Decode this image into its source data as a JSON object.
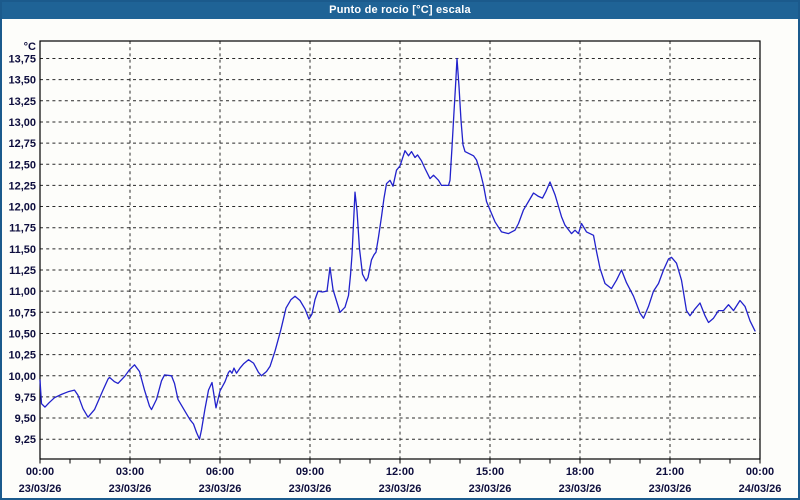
{
  "window": {
    "title": "Punto de rocío [°C] escala"
  },
  "colors": {
    "titlebar": "#1f6396",
    "border": "#1b5a8c",
    "background": "#fdfdfa",
    "grid": "#2a2a2a",
    "axis_frame": "#000000",
    "text": "#0d0d3d",
    "title_text": "#ffffff",
    "line": "#2222cc"
  },
  "chart_data": {
    "type": "line",
    "title": "Punto de rocío [°C] escala",
    "y_unit_label": "°C",
    "ylabel": "°C",
    "xlabel": "",
    "ylim": [
      9.02,
      13.96
    ],
    "xlim_minutes": [
      0,
      1440
    ],
    "grid": "dashed",
    "legend_position": "none",
    "y_ticks": [
      13.75,
      13.5,
      13.25,
      13.0,
      12.75,
      12.5,
      12.25,
      12.0,
      11.75,
      11.5,
      11.25,
      11.0,
      10.75,
      10.5,
      10.25,
      10.0,
      9.75,
      9.5,
      9.25
    ],
    "y_tick_labels": [
      "13,75",
      "13,50",
      "13,25",
      "13,00",
      "12,75",
      "12,50",
      "12,25",
      "12,00",
      "11,75",
      "11,50",
      "11,25",
      "11,00",
      "10,75",
      "10,50",
      "10,25",
      "10,00",
      "9,75",
      "9,50",
      "9,25"
    ],
    "x_ticks": [
      {
        "minutes": 0,
        "time": "00:00",
        "date": "23/03/26"
      },
      {
        "minutes": 180,
        "time": "03:00",
        "date": "23/03/26"
      },
      {
        "minutes": 360,
        "time": "06:00",
        "date": "23/03/26"
      },
      {
        "minutes": 540,
        "time": "09:00",
        "date": "23/03/26"
      },
      {
        "minutes": 720,
        "time": "12:00",
        "date": "23/03/26"
      },
      {
        "minutes": 900,
        "time": "15:00",
        "date": "23/03/26"
      },
      {
        "minutes": 1080,
        "time": "18:00",
        "date": "23/03/26"
      },
      {
        "minutes": 1260,
        "time": "21:00",
        "date": "23/03/26"
      },
      {
        "minutes": 1440,
        "time": "00:00",
        "date": "24/03/26"
      }
    ],
    "minor_x_tick_every_minutes": 60,
    "series": [
      {
        "name": "Punto de rocío [°C]",
        "color": "#2222cc",
        "points_minutes_value": [
          [
            0,
            9.95
          ],
          [
            3,
            9.67
          ],
          [
            10,
            9.63
          ],
          [
            18,
            9.68
          ],
          [
            29,
            9.74
          ],
          [
            43,
            9.78
          ],
          [
            56,
            9.81
          ],
          [
            69,
            9.83
          ],
          [
            76,
            9.77
          ],
          [
            86,
            9.61
          ],
          [
            96,
            9.51
          ],
          [
            109,
            9.6
          ],
          [
            126,
            9.83
          ],
          [
            136,
            9.96
          ],
          [
            139,
            9.98
          ],
          [
            149,
            9.93
          ],
          [
            156,
            9.91
          ],
          [
            169,
            9.99
          ],
          [
            179,
            10.07
          ],
          [
            189,
            10.13
          ],
          [
            199,
            10.05
          ],
          [
            209,
            9.83
          ],
          [
            219,
            9.64
          ],
          [
            223,
            9.6
          ],
          [
            233,
            9.72
          ],
          [
            243,
            9.94
          ],
          [
            249,
            10.01
          ],
          [
            263,
            10.0
          ],
          [
            269,
            9.91
          ],
          [
            276,
            9.72
          ],
          [
            293,
            9.55
          ],
          [
            300,
            9.48
          ],
          [
            307,
            9.43
          ],
          [
            313,
            9.33
          ],
          [
            319,
            9.25
          ],
          [
            323,
            9.36
          ],
          [
            330,
            9.61
          ],
          [
            337,
            9.83
          ],
          [
            344,
            9.92
          ],
          [
            352,
            9.62
          ],
          [
            360,
            9.82
          ],
          [
            370,
            9.93
          ],
          [
            377,
            10.04
          ],
          [
            380,
            10.06
          ],
          [
            384,
            10.03
          ],
          [
            388,
            10.09
          ],
          [
            393,
            10.03
          ],
          [
            400,
            10.09
          ],
          [
            407,
            10.14
          ],
          [
            417,
            10.19
          ],
          [
            427,
            10.15
          ],
          [
            437,
            10.04
          ],
          [
            443,
            10.0
          ],
          [
            453,
            10.05
          ],
          [
            460,
            10.11
          ],
          [
            470,
            10.29
          ],
          [
            482,
            10.55
          ],
          [
            492,
            10.8
          ],
          [
            502,
            10.9
          ],
          [
            510,
            10.94
          ],
          [
            520,
            10.89
          ],
          [
            530,
            10.79
          ],
          [
            538,
            10.67
          ],
          [
            544,
            10.73
          ],
          [
            550,
            10.9
          ],
          [
            556,
            11.0
          ],
          [
            565,
            10.99
          ],
          [
            574,
            11.0
          ],
          [
            580,
            11.28
          ],
          [
            586,
            11.02
          ],
          [
            600,
            10.75
          ],
          [
            610,
            10.81
          ],
          [
            617,
            10.95
          ],
          [
            621,
            11.19
          ],
          [
            624,
            11.43
          ],
          [
            630,
            12.17
          ],
          [
            634,
            11.95
          ],
          [
            639,
            11.5
          ],
          [
            645,
            11.2
          ],
          [
            652,
            11.12
          ],
          [
            656,
            11.16
          ],
          [
            663,
            11.37
          ],
          [
            668,
            11.43
          ],
          [
            672,
            11.46
          ],
          [
            677,
            11.64
          ],
          [
            683,
            11.88
          ],
          [
            688,
            12.1
          ],
          [
            693,
            12.27
          ],
          [
            700,
            12.31
          ],
          [
            706,
            12.24
          ],
          [
            713,
            12.43
          ],
          [
            720,
            12.48
          ],
          [
            730,
            12.66
          ],
          [
            737,
            12.6
          ],
          [
            743,
            12.65
          ],
          [
            750,
            12.58
          ],
          [
            755,
            12.61
          ],
          [
            763,
            12.54
          ],
          [
            770,
            12.45
          ],
          [
            780,
            12.33
          ],
          [
            787,
            12.37
          ],
          [
            797,
            12.31
          ],
          [
            803,
            12.25
          ],
          [
            817,
            12.25
          ],
          [
            820,
            12.31
          ],
          [
            824,
            12.7
          ],
          [
            828,
            13.12
          ],
          [
            831,
            13.42
          ],
          [
            834,
            13.75
          ],
          [
            838,
            13.42
          ],
          [
            842,
            13.02
          ],
          [
            846,
            12.73
          ],
          [
            850,
            12.65
          ],
          [
            857,
            12.63
          ],
          [
            867,
            12.6
          ],
          [
            873,
            12.55
          ],
          [
            880,
            12.42
          ],
          [
            887,
            12.25
          ],
          [
            893,
            12.06
          ],
          [
            900,
            11.96
          ],
          [
            910,
            11.82
          ],
          [
            923,
            11.7
          ],
          [
            937,
            11.68
          ],
          [
            950,
            11.72
          ],
          [
            957,
            11.8
          ],
          [
            967,
            11.96
          ],
          [
            977,
            12.06
          ],
          [
            987,
            12.16
          ],
          [
            997,
            12.12
          ],
          [
            1005,
            12.1
          ],
          [
            1012,
            12.18
          ],
          [
            1020,
            12.29
          ],
          [
            1030,
            12.14
          ],
          [
            1037,
            12.0
          ],
          [
            1043,
            11.88
          ],
          [
            1050,
            11.78
          ],
          [
            1063,
            11.68
          ],
          [
            1070,
            11.72
          ],
          [
            1077,
            11.68
          ],
          [
            1083,
            11.8
          ],
          [
            1093,
            11.7
          ],
          [
            1107,
            11.66
          ],
          [
            1113,
            11.47
          ],
          [
            1120,
            11.27
          ],
          [
            1130,
            11.09
          ],
          [
            1143,
            11.03
          ],
          [
            1153,
            11.13
          ],
          [
            1163,
            11.25
          ],
          [
            1173,
            11.1
          ],
          [
            1187,
            10.94
          ],
          [
            1200,
            10.74
          ],
          [
            1207,
            10.68
          ],
          [
            1217,
            10.82
          ],
          [
            1227,
            11.0
          ],
          [
            1237,
            11.09
          ],
          [
            1247,
            11.25
          ],
          [
            1257,
            11.38
          ],
          [
            1263,
            11.4
          ],
          [
            1273,
            11.33
          ],
          [
            1283,
            11.13
          ],
          [
            1293,
            10.77
          ],
          [
            1300,
            10.71
          ],
          [
            1310,
            10.79
          ],
          [
            1320,
            10.86
          ],
          [
            1330,
            10.71
          ],
          [
            1337,
            10.63
          ],
          [
            1347,
            10.68
          ],
          [
            1357,
            10.77
          ],
          [
            1367,
            10.77
          ],
          [
            1377,
            10.84
          ],
          [
            1387,
            10.77
          ],
          [
            1400,
            10.89
          ],
          [
            1410,
            10.82
          ],
          [
            1420,
            10.65
          ],
          [
            1430,
            10.53
          ]
        ]
      }
    ]
  }
}
